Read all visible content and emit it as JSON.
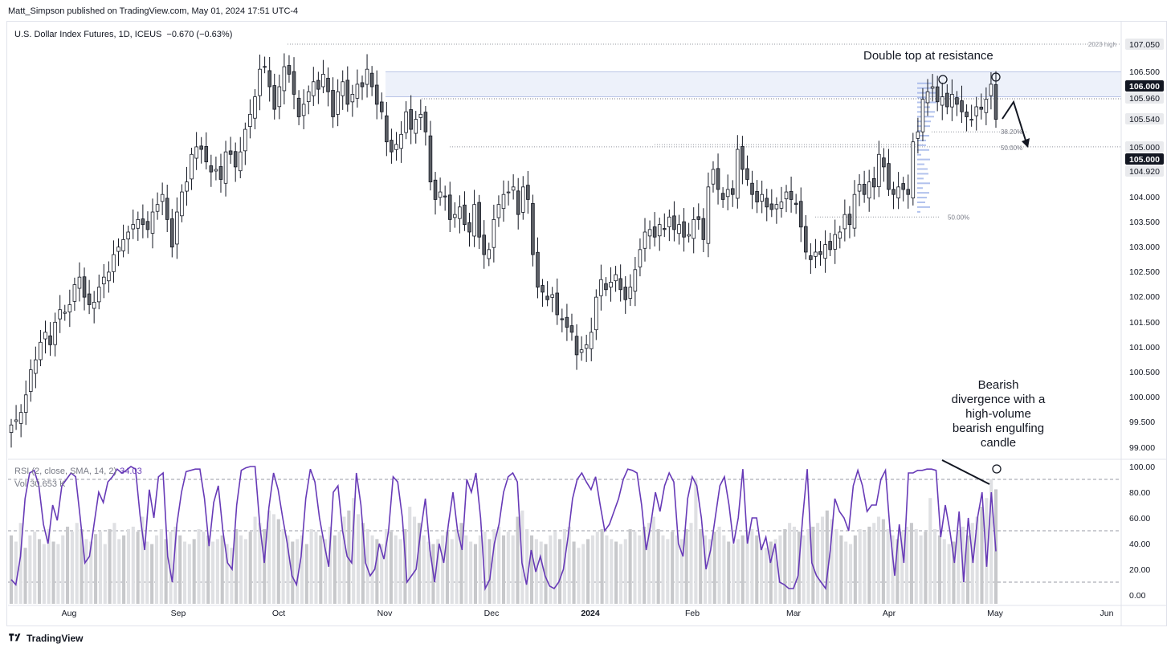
{
  "header": {
    "publisher": "Matt_Simpson published on TradingView.com, May 01, 2024 17:51 UTC-4"
  },
  "footer": {
    "brand": "TradingView",
    "logo_icon": "tradingview-logo-icon"
  },
  "colors": {
    "up": "#ffffff",
    "down": "#5d6066",
    "wick": "#131722",
    "rsi": "#673ab7",
    "volume": "#c7c8cb",
    "volume_up": "#dfe0e3",
    "fib_band": "#d6e0f5",
    "profile": "#9fb3e8"
  },
  "chart_data": [
    {
      "type": "candlestick",
      "title": "U.S. Dollar Index Futures, 1D, ICEUS",
      "change_text": "−0.670 (−0.63%)",
      "price_ticks": [
        "107.050",
        "106.500",
        "106.000",
        "105.960",
        "105.540",
        "105.000",
        "105.000",
        "104.920",
        "104.000",
        "103.500",
        "103.000",
        "102.500",
        "102.000",
        "101.500",
        "101.000",
        "100.500",
        "100.000",
        "99.500",
        "99.000"
      ],
      "highlighted_prices": [
        "106.000",
        "105.000"
      ],
      "ylim": [
        98.8,
        107.4
      ],
      "x_labels": [
        "Aug",
        "Sep",
        "Oct",
        "Nov",
        "Dec",
        "2024",
        "Feb",
        "Mar",
        "Apr",
        "May",
        "Jun"
      ],
      "series": [
        {
          "values_close": [
            99.45,
            99.55,
            99.7,
            100.05,
            100.55,
            100.75,
            101.1,
            101.3,
            101.05,
            101.5,
            101.75,
            101.7,
            101.85,
            102.25,
            102.4,
            102.0,
            101.85,
            101.9,
            102.2,
            102.4,
            102.5,
            102.85,
            103.0,
            103.15,
            103.3,
            103.45,
            103.55,
            103.45,
            103.35,
            103.7,
            103.85,
            104.05,
            103.55,
            103.0,
            103.7,
            104.1,
            104.3,
            104.85,
            105.0,
            104.95,
            104.7,
            104.5,
            104.55,
            104.35,
            104.9,
            104.85,
            104.6,
            104.9,
            105.35,
            105.65,
            106.0,
            106.55,
            106.6,
            106.2,
            105.75,
            106.2,
            106.6,
            106.45,
            106.05,
            105.6,
            105.85,
            106.1,
            106.3,
            106.15,
            106.45,
            106.1,
            105.6,
            106.1,
            106.3,
            105.85,
            106.05,
            106.25,
            106.2,
            106.55,
            106.2,
            105.85,
            105.7,
            105.1,
            104.9,
            105.05,
            105.25,
            105.7,
            105.35,
            105.55,
            105.65,
            105.3,
            104.3,
            103.95,
            104.1,
            104.0,
            103.55,
            103.65,
            103.8,
            103.45,
            103.3,
            103.85,
            103.2,
            102.85,
            102.95,
            103.55,
            103.85,
            104.05,
            104.1,
            104.2,
            103.65,
            104.2,
            103.95,
            102.85,
            102.2,
            102.1,
            101.95,
            102.05,
            101.65,
            101.55,
            101.4,
            101.3,
            100.85,
            100.95,
            101.05,
            101.3,
            102.0,
            102.35,
            102.15,
            102.3,
            102.45,
            102.15,
            101.95,
            102.2,
            102.55,
            102.95,
            103.3,
            103.35,
            103.2,
            103.45,
            103.35,
            103.6,
            103.35,
            103.45,
            103.2,
            103.25,
            103.55,
            103.55,
            103.15,
            104.2,
            104.55,
            104.15,
            103.95,
            104.15,
            104.05,
            104.95,
            104.55,
            104.35,
            104.05,
            103.9,
            104.05,
            103.8,
            103.75,
            103.85,
            103.9,
            104.1,
            103.95,
            103.85,
            103.4,
            102.9,
            102.75,
            102.9,
            102.85,
            103.05,
            102.95,
            103.25,
            103.3,
            103.65,
            103.45,
            104.05,
            104.25,
            104.05,
            104.3,
            104.2,
            104.85,
            104.6,
            104.15,
            104.05,
            104.2,
            104.15,
            104.05,
            105.1,
            105.3,
            105.95,
            106.1,
            106.2,
            105.9,
            106.0,
            105.8,
            106.05,
            105.85,
            105.7,
            105.6,
            105.55,
            105.8,
            105.75,
            105.95,
            106.25,
            105.55
          ]
        }
      ],
      "levels": [
        {
          "name": "2023-high",
          "price": 107.05,
          "label": "2023 high"
        },
        {
          "name": "resistance-top",
          "price": 106.5
        },
        {
          "name": "resistance-106",
          "price": 106.0
        },
        {
          "name": "level-105-96",
          "price": 105.96
        },
        {
          "name": "level-105",
          "price": 105.0
        }
      ],
      "fib_labels": [
        {
          "text": "38.20%",
          "price": 105.3
        },
        {
          "text": "50.00%",
          "price": 104.98
        },
        {
          "text": "50.00%",
          "price": 103.6
        }
      ],
      "annotations": [
        {
          "text": "Double top at resistance"
        },
        {
          "text_lines": [
            "Bearish",
            "divergence with a",
            "high-volume",
            "bearish engulfing",
            "candle"
          ]
        }
      ]
    },
    {
      "type": "line",
      "indicator_label": "RSI (2, close, SMA, 14, 2)",
      "indicator_value": "34.03",
      "volume_label": "Vol",
      "volume_value": "30.653 K",
      "ylim": [
        0,
        100
      ],
      "ticks": [
        "100.00",
        "80.00",
        "60.00",
        "40.00",
        "20.00",
        "0.00"
      ],
      "reference_lines": [
        90,
        50,
        10
      ],
      "rsi": [
        12,
        8,
        30,
        75,
        95,
        97,
        85,
        55,
        40,
        70,
        58,
        85,
        90,
        95,
        92,
        60,
        25,
        30,
        55,
        80,
        72,
        88,
        92,
        98,
        95,
        97,
        100,
        98,
        62,
        35,
        82,
        60,
        92,
        95,
        30,
        10,
        55,
        80,
        96,
        97,
        98,
        98,
        75,
        38,
        72,
        85,
        50,
        25,
        20,
        70,
        97,
        99,
        100,
        100,
        55,
        25,
        68,
        95,
        82,
        60,
        40,
        15,
        8,
        30,
        75,
        98,
        88,
        60,
        40,
        22,
        80,
        85,
        50,
        30,
        25,
        95,
        70,
        25,
        15,
        20,
        40,
        28,
        50,
        92,
        88,
        60,
        10,
        15,
        20,
        50,
        75,
        35,
        10,
        40,
        25,
        55,
        80,
        50,
        35,
        90,
        80,
        95,
        60,
        5,
        12,
        40,
        55,
        80,
        92,
        95,
        88,
        25,
        8,
        35,
        18,
        30,
        15,
        7,
        5,
        10,
        20,
        45,
        75,
        90,
        95,
        88,
        82,
        92,
        70,
        50,
        55,
        65,
        75,
        90,
        98,
        97,
        95,
        70,
        35,
        55,
        80,
        65,
        85,
        95,
        88,
        40,
        30,
        75,
        92,
        85,
        60,
        20,
        35,
        60,
        85,
        92,
        70,
        40,
        60,
        98,
        40,
        60,
        60,
        35,
        45,
        25,
        40,
        10,
        8,
        5,
        5,
        15,
        60,
        98,
        25,
        15,
        10,
        5,
        35,
        75,
        65,
        60,
        50,
        85,
        97,
        85,
        65,
        70,
        70,
        90,
        97,
        50,
        15,
        55,
        25,
        95,
        95,
        97,
        97,
        98,
        98,
        97,
        45,
        70,
        50,
        25,
        65,
        10,
        60,
        25,
        60,
        80,
        22,
        80,
        34
      ],
      "volume": [
        55,
        50,
        65,
        45,
        55,
        58,
        52,
        48,
        60,
        50,
        48,
        55,
        62,
        58,
        65,
        60,
        52,
        50,
        56,
        58,
        48,
        60,
        65,
        52,
        55,
        60,
        62,
        58,
        70,
        50,
        48,
        55,
        60,
        52,
        58,
        62,
        55,
        50,
        48,
        52,
        60,
        58,
        55,
        50,
        52,
        55,
        48,
        45,
        60,
        55,
        52,
        58,
        70,
        65,
        60,
        75,
        72,
        68,
        60,
        55,
        50,
        52,
        55,
        48,
        60,
        58,
        55,
        52,
        62,
        55,
        58,
        70,
        75,
        85,
        72,
        65,
        60,
        55,
        52,
        48,
        60,
        58,
        55,
        52,
        60,
        78,
        70,
        65,
        55,
        50,
        48,
        52,
        55,
        58,
        52,
        60,
        65,
        55,
        50,
        48,
        55,
        58,
        52,
        60,
        62,
        55,
        58,
        55,
        70,
        75,
        60,
        55,
        52,
        50,
        48,
        55,
        58,
        52,
        60,
        62,
        50,
        45,
        48,
        52,
        55,
        58,
        60,
        55,
        52,
        50,
        48,
        52,
        60,
        58,
        55,
        62,
        65,
        70,
        60,
        55,
        52,
        58,
        55,
        52,
        60,
        65,
        100,
        60,
        55,
        52,
        58,
        62,
        55,
        50,
        48,
        52,
        55,
        58,
        60,
        55,
        48,
        45,
        50,
        52,
        55,
        60,
        65,
        62,
        58,
        55,
        60,
        62,
        65,
        70,
        75,
        68,
        60,
        55,
        50,
        48,
        55,
        60,
        58,
        62,
        65,
        70,
        68,
        60,
        55,
        52,
        58,
        62,
        65,
        60,
        55,
        58,
        85,
        60,
        55,
        52,
        48,
        50,
        58,
        62,
        55,
        65,
        70,
        78,
        85,
        100,
        92
      ]
    }
  ]
}
